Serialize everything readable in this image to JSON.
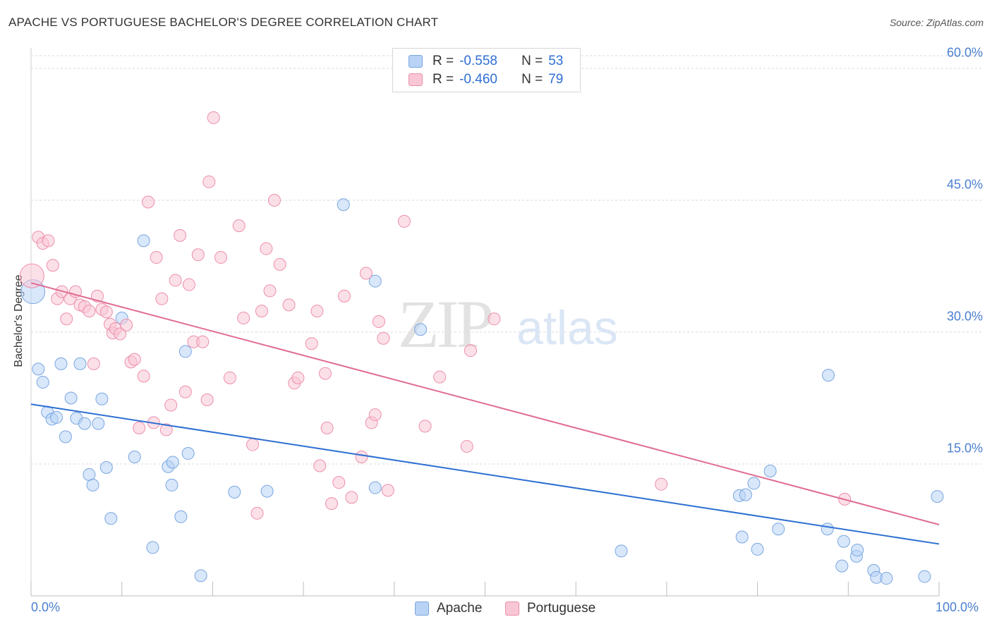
{
  "header": {
    "title": "APACHE VS PORTUGUESE BACHELOR'S DEGREE CORRELATION CHART",
    "source": "Source: ZipAtlas.com"
  },
  "watermark": {
    "zip": "ZIP",
    "atlas": "atlas"
  },
  "legend": {
    "rows": [
      {
        "r_label": "R =",
        "r_value": "-0.558",
        "n_label": "N =",
        "n_value": "53",
        "color": "#b8d3f5",
        "border": "#7aa6e0"
      },
      {
        "r_label": "R =",
        "r_value": "-0.460",
        "n_label": "N =",
        "n_value": "79",
        "color": "#f9c6d6",
        "border": "#ec8fab"
      }
    ]
  },
  "bottom_legend": [
    {
      "label": "Apache",
      "color": "#b8d3f5",
      "border": "#7aa6e0"
    },
    {
      "label": "Portuguese",
      "color": "#f9c6d6",
      "border": "#ec8fab"
    }
  ],
  "chart_data": {
    "type": "scatter",
    "title": "APACHE VS PORTUGUESE BACHELOR'S DEGREE CORRELATION CHART",
    "xlabel": "",
    "ylabel": "Bachelor's Degree",
    "xlim": [
      0,
      100
    ],
    "ylim": [
      0,
      60
    ],
    "y_ticks": [
      {
        "value": 15,
        "label": "15.0%"
      },
      {
        "value": 30,
        "label": "30.0%"
      },
      {
        "value": 45,
        "label": "45.0%"
      },
      {
        "value": 60,
        "label": "60.0%"
      }
    ],
    "x_tick_labels": [
      {
        "value": 0,
        "label": "0.0%"
      },
      {
        "value": 100,
        "label": "100.0%"
      }
    ],
    "grid": "horizontal dashed",
    "series": [
      {
        "name": "Apache",
        "color": "#7aa6e0",
        "fill": "#b8d3f5",
        "line_color": "#2d6fd2",
        "trend": {
          "x0": 0,
          "y0": 21.8,
          "x1": 100,
          "y1": 5.9
        },
        "points": [
          {
            "x": 0.2,
            "y": 34.6,
            "big": true
          },
          {
            "x": 0.8,
            "y": 25.8
          },
          {
            "x": 1.3,
            "y": 24.3
          },
          {
            "x": 1.8,
            "y": 20.9
          },
          {
            "x": 2.3,
            "y": 20.1
          },
          {
            "x": 2.8,
            "y": 20.3
          },
          {
            "x": 3.3,
            "y": 26.4
          },
          {
            "x": 3.8,
            "y": 18.1
          },
          {
            "x": 4.4,
            "y": 22.5
          },
          {
            "x": 5.0,
            "y": 20.2
          },
          {
            "x": 5.4,
            "y": 26.4
          },
          {
            "x": 5.9,
            "y": 19.6
          },
          {
            "x": 6.4,
            "y": 13.8
          },
          {
            "x": 6.8,
            "y": 12.6
          },
          {
            "x": 7.4,
            "y": 19.6
          },
          {
            "x": 7.8,
            "y": 22.4
          },
          {
            "x": 8.3,
            "y": 14.6
          },
          {
            "x": 8.8,
            "y": 8.8
          },
          {
            "x": 10.0,
            "y": 31.6
          },
          {
            "x": 11.4,
            "y": 15.8
          },
          {
            "x": 12.4,
            "y": 40.4
          },
          {
            "x": 13.4,
            "y": 5.5
          },
          {
            "x": 15.1,
            "y": 14.7
          },
          {
            "x": 15.6,
            "y": 15.2
          },
          {
            "x": 15.5,
            "y": 12.6
          },
          {
            "x": 16.5,
            "y": 9.0
          },
          {
            "x": 17.0,
            "y": 27.8
          },
          {
            "x": 17.3,
            "y": 16.2
          },
          {
            "x": 18.7,
            "y": 2.3
          },
          {
            "x": 22.4,
            "y": 11.8
          },
          {
            "x": 26.0,
            "y": 11.9
          },
          {
            "x": 34.4,
            "y": 44.5
          },
          {
            "x": 37.9,
            "y": 12.3
          },
          {
            "x": 37.9,
            "y": 35.8
          },
          {
            "x": 42.9,
            "y": 30.3
          },
          {
            "x": 65.0,
            "y": 5.1
          },
          {
            "x": 78.0,
            "y": 11.4
          },
          {
            "x": 78.7,
            "y": 11.5
          },
          {
            "x": 78.3,
            "y": 6.7
          },
          {
            "x": 79.6,
            "y": 12.8
          },
          {
            "x": 80.0,
            "y": 5.3
          },
          {
            "x": 81.4,
            "y": 14.2
          },
          {
            "x": 82.3,
            "y": 7.6
          },
          {
            "x": 87.7,
            "y": 7.6
          },
          {
            "x": 87.8,
            "y": 25.1
          },
          {
            "x": 89.3,
            "y": 3.4
          },
          {
            "x": 89.5,
            "y": 6.2
          },
          {
            "x": 90.9,
            "y": 4.5
          },
          {
            "x": 91.0,
            "y": 5.2
          },
          {
            "x": 92.8,
            "y": 2.9
          },
          {
            "x": 93.1,
            "y": 2.1
          },
          {
            "x": 94.2,
            "y": 2.0
          },
          {
            "x": 98.4,
            "y": 2.2
          },
          {
            "x": 99.8,
            "y": 11.3
          }
        ]
      },
      {
        "name": "Portuguese",
        "color": "#ec8fab",
        "fill": "#f9c6d6",
        "line_color": "#e06c93",
        "trend": {
          "x0": 0,
          "y0": 35.6,
          "x1": 100,
          "y1": 8.1
        },
        "points": [
          {
            "x": 0.1,
            "y": 36.4,
            "big": true
          },
          {
            "x": 0.8,
            "y": 40.8
          },
          {
            "x": 1.3,
            "y": 40.1
          },
          {
            "x": 1.9,
            "y": 40.4
          },
          {
            "x": 2.4,
            "y": 37.6
          },
          {
            "x": 2.9,
            "y": 33.8
          },
          {
            "x": 3.4,
            "y": 34.6
          },
          {
            "x": 3.9,
            "y": 31.5
          },
          {
            "x": 4.3,
            "y": 33.8
          },
          {
            "x": 4.9,
            "y": 34.6
          },
          {
            "x": 5.4,
            "y": 33.1
          },
          {
            "x": 5.9,
            "y": 32.9
          },
          {
            "x": 6.4,
            "y": 32.4
          },
          {
            "x": 6.9,
            "y": 26.4
          },
          {
            "x": 7.3,
            "y": 34.1
          },
          {
            "x": 7.8,
            "y": 32.6
          },
          {
            "x": 8.3,
            "y": 32.3
          },
          {
            "x": 8.7,
            "y": 30.9
          },
          {
            "x": 9.0,
            "y": 29.9
          },
          {
            "x": 9.3,
            "y": 30.4
          },
          {
            "x": 9.8,
            "y": 29.8
          },
          {
            "x": 10.5,
            "y": 30.8
          },
          {
            "x": 11.0,
            "y": 26.6
          },
          {
            "x": 11.4,
            "y": 26.9
          },
          {
            "x": 11.9,
            "y": 19.1
          },
          {
            "x": 12.4,
            "y": 25.0
          },
          {
            "x": 12.9,
            "y": 44.8
          },
          {
            "x": 13.5,
            "y": 19.7
          },
          {
            "x": 13.8,
            "y": 38.5
          },
          {
            "x": 14.4,
            "y": 33.8
          },
          {
            "x": 14.9,
            "y": 18.9
          },
          {
            "x": 15.4,
            "y": 21.7
          },
          {
            "x": 15.9,
            "y": 35.9
          },
          {
            "x": 16.4,
            "y": 41.0
          },
          {
            "x": 17.0,
            "y": 23.2
          },
          {
            "x": 17.4,
            "y": 35.4
          },
          {
            "x": 17.9,
            "y": 28.9
          },
          {
            "x": 18.4,
            "y": 38.8
          },
          {
            "x": 18.9,
            "y": 28.9
          },
          {
            "x": 19.4,
            "y": 22.3
          },
          {
            "x": 19.6,
            "y": 47.1
          },
          {
            "x": 20.1,
            "y": 54.4
          },
          {
            "x": 20.9,
            "y": 38.5
          },
          {
            "x": 21.9,
            "y": 24.8
          },
          {
            "x": 22.9,
            "y": 42.1
          },
          {
            "x": 23.4,
            "y": 31.6
          },
          {
            "x": 24.4,
            "y": 17.2
          },
          {
            "x": 24.9,
            "y": 9.4
          },
          {
            "x": 25.4,
            "y": 32.4
          },
          {
            "x": 25.9,
            "y": 39.5
          },
          {
            "x": 26.3,
            "y": 34.7
          },
          {
            "x": 26.8,
            "y": 45.0
          },
          {
            "x": 27.4,
            "y": 37.7
          },
          {
            "x": 28.4,
            "y": 33.1
          },
          {
            "x": 29.0,
            "y": 24.2
          },
          {
            "x": 29.4,
            "y": 24.8
          },
          {
            "x": 30.9,
            "y": 28.7
          },
          {
            "x": 31.5,
            "y": 32.4
          },
          {
            "x": 31.8,
            "y": 14.8
          },
          {
            "x": 32.4,
            "y": 25.3
          },
          {
            "x": 32.6,
            "y": 19.1
          },
          {
            "x": 33.1,
            "y": 10.5
          },
          {
            "x": 33.9,
            "y": 12.9
          },
          {
            "x": 34.5,
            "y": 34.1
          },
          {
            "x": 35.3,
            "y": 11.2
          },
          {
            "x": 36.4,
            "y": 15.8
          },
          {
            "x": 36.9,
            "y": 36.7
          },
          {
            "x": 37.5,
            "y": 19.7
          },
          {
            "x": 37.9,
            "y": 20.6
          },
          {
            "x": 38.3,
            "y": 31.2
          },
          {
            "x": 38.8,
            "y": 29.3
          },
          {
            "x": 39.3,
            "y": 12.0
          },
          {
            "x": 41.1,
            "y": 42.6
          },
          {
            "x": 43.4,
            "y": 19.3
          },
          {
            "x": 45.0,
            "y": 24.9
          },
          {
            "x": 48.0,
            "y": 17.0
          },
          {
            "x": 48.4,
            "y": 27.9
          },
          {
            "x": 51.0,
            "y": 31.5
          },
          {
            "x": 69.4,
            "y": 12.7
          },
          {
            "x": 89.6,
            "y": 11.0
          }
        ]
      }
    ]
  }
}
